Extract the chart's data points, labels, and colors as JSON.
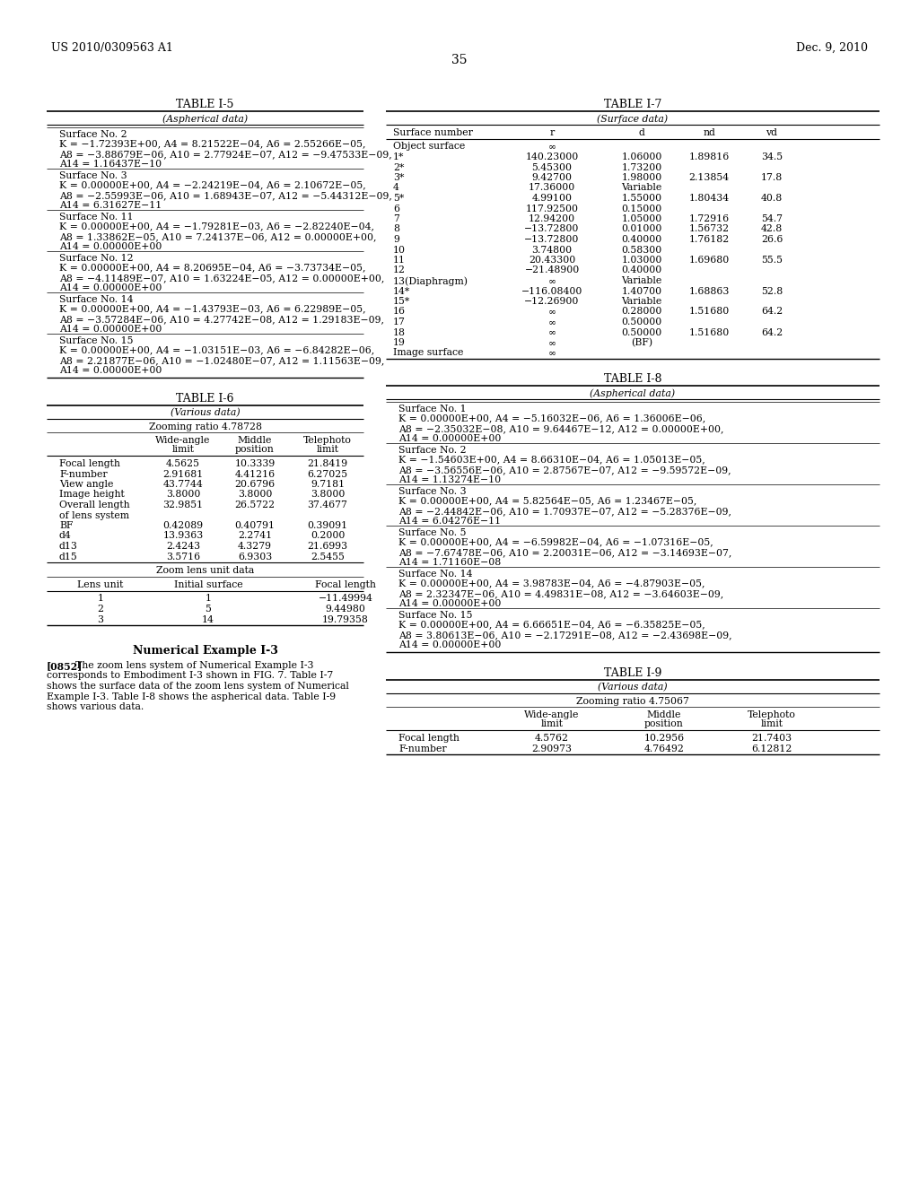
{
  "header_left": "US 2010/0309563 A1",
  "header_right": "Dec. 9, 2010",
  "page_number": "35",
  "table_i5_title": "TABLE I-5",
  "table_i5_subtitle": "(Aspherical data)",
  "table_i5_data": [
    "Surface No. 2",
    "K = −1.72393E+00, A4 = 8.21522E−04, A6 = 2.55266E−05,",
    "A8 = −3.88679E−06, A10 = 2.77924E−07, A12 = −9.47533E−09,",
    "A14 = 1.16437E−10",
    "Surface No. 3",
    "K = 0.00000E+00, A4 = −2.24219E−04, A6 = 2.10672E−05,",
    "A8 = −2.55993E−06, A10 = 1.68943E−07, A12 = −5.44312E−09,",
    "A14 = 6.31627E−11",
    "Surface No. 11",
    "K = 0.00000E+00, A4 = −1.79281E−03, A6 = −2.82240E−04,",
    "A8 = 1.33862E−05, A10 = 7.24137E−06, A12 = 0.00000E+00,",
    "A14 = 0.00000E+00",
    "Surface No. 12",
    "K = 0.00000E+00, A4 = 8.20695E−04, A6 = −3.73734E−05,",
    "A8 = −4.11489E−07, A10 = 1.63224E−05, A12 = 0.00000E+00,",
    "A14 = 0.00000E+00",
    "Surface No. 14",
    "K = 0.00000E+00, A4 = −1.43793E−03, A6 = 6.22989E−05,",
    "A8 = −3.57284E−06, A10 = 4.27742E−08, A12 = 1.29183E−09,",
    "A14 = 0.00000E+00",
    "Surface No. 15",
    "K = 0.00000E+00, A4 = −1.03151E−03, A6 = −6.84282E−06,",
    "A8 = 2.21877E−06, A10 = −1.02480E−07, A12 = 1.11563E−09,",
    "A14 = 0.00000E+00"
  ],
  "table_i6_title": "TABLE I-6",
  "table_i6_subtitle": "(Various data)",
  "table_i6_zoom_ratio": "Zooming ratio 4.78728",
  "table_i6_rows": [
    [
      "Focal length",
      "4.5625",
      "10.3339",
      "21.8419"
    ],
    [
      "F-number",
      "2.91681",
      "4.41216",
      "6.27025"
    ],
    [
      "View angle",
      "43.7744",
      "20.6796",
      "9.7181"
    ],
    [
      "Image height",
      "3.8000",
      "3.8000",
      "3.8000"
    ],
    [
      "Overall length",
      "32.9851",
      "26.5722",
      "37.4677"
    ],
    [
      "of lens system",
      "",
      "",
      ""
    ],
    [
      "BF",
      "0.42089",
      "0.40791",
      "0.39091"
    ],
    [
      "d4",
      "13.9363",
      "2.2741",
      "0.2000"
    ],
    [
      "d13",
      "2.4243",
      "4.3279",
      "21.6993"
    ],
    [
      "d15",
      "3.5716",
      "6.9303",
      "2.5455"
    ]
  ],
  "table_i6_zoom_unit": "Zoom lens unit data",
  "table_i6_unit_headers": [
    "Lens unit",
    "Initial surface",
    "Focal length"
  ],
  "table_i6_unit_rows": [
    [
      "1",
      "1",
      "−11.49994"
    ],
    [
      "2",
      "5",
      "9.44980"
    ],
    [
      "3",
      "14",
      "19.79358"
    ]
  ],
  "table_i7_title": "TABLE I-7",
  "table_i7_subtitle": "(Surface data)",
  "table_i7_headers": [
    "Surface number",
    "r",
    "d",
    "nd",
    "vd"
  ],
  "table_i7_rows": [
    [
      "Object surface",
      "∞",
      "",
      "",
      ""
    ],
    [
      "1*",
      "140.23000",
      "1.06000",
      "1.89816",
      "34.5"
    ],
    [
      "2*",
      "5.45300",
      "1.73200",
      "",
      ""
    ],
    [
      "3*",
      "9.42700",
      "1.98000",
      "2.13854",
      "17.8"
    ],
    [
      "4",
      "17.36000",
      "Variable",
      "",
      ""
    ],
    [
      "5*",
      "4.99100",
      "1.55000",
      "1.80434",
      "40.8"
    ],
    [
      "6",
      "117.92500",
      "0.15000",
      "",
      ""
    ],
    [
      "7",
      "12.94200",
      "1.05000",
      "1.72916",
      "54.7"
    ],
    [
      "8",
      "−13.72800",
      "0.01000",
      "1.56732",
      "42.8"
    ],
    [
      "9",
      "−13.72800",
      "0.40000",
      "1.76182",
      "26.6"
    ],
    [
      "10",
      "3.74800",
      "0.58300",
      "",
      ""
    ],
    [
      "11",
      "20.43300",
      "1.03000",
      "1.69680",
      "55.5"
    ],
    [
      "12",
      "−21.48900",
      "0.40000",
      "",
      ""
    ],
    [
      "13(Diaphragm)",
      "∞",
      "Variable",
      "",
      ""
    ],
    [
      "14*",
      "−116.08400",
      "1.40700",
      "1.68863",
      "52.8"
    ],
    [
      "15*",
      "−12.26900",
      "Variable",
      "",
      ""
    ],
    [
      "16",
      "∞",
      "0.28000",
      "1.51680",
      "64.2"
    ],
    [
      "17",
      "∞",
      "0.50000",
      "",
      ""
    ],
    [
      "18",
      "∞",
      "0.50000",
      "1.51680",
      "64.2"
    ],
    [
      "19",
      "∞",
      "(BF)",
      "",
      ""
    ],
    [
      "Image surface",
      "∞",
      "",
      "",
      ""
    ]
  ],
  "table_i8_title": "TABLE I-8",
  "table_i8_subtitle": "(Aspherical data)",
  "table_i8_data": [
    "Surface No. 1",
    "K = 0.00000E+00, A4 = −5.16032E−06, A6 = 1.36006E−06,",
    "A8 = −2.35032E−08, A10 = 9.64467E−12, A12 = 0.00000E+00,",
    "A14 = 0.00000E+00",
    "Surface No. 2",
    "K = −1.54603E+00, A4 = 8.66310E−04, A6 = 1.05013E−05,",
    "A8 = −3.56556E−06, A10 = 2.87567E−07, A12 = −9.59572E−09,",
    "A14 = 1.13274E−10",
    "Surface No. 3",
    "K = 0.00000E+00, A4 = 5.82564E−05, A6 = 1.23467E−05,",
    "A8 = −2.44842E−06, A10 = 1.70937E−07, A12 = −5.28376E−09,",
    "A14 = 6.04276E−11",
    "Surface No. 5",
    "K = 0.00000E+00, A4 = −6.59982E−04, A6 = −1.07316E−05,",
    "A8 = −7.67478E−06, A10 = 2.20031E−06, A12 = −3.14693E−07,",
    "A14 = 1.71160E−08",
    "Surface No. 14",
    "K = 0.00000E+00, A4 = 3.98783E−04, A6 = −4.87903E−05,",
    "A8 = 2.32347E−06, A10 = 4.49831E−08, A12 = −3.64603E−09,",
    "A14 = 0.00000E+00",
    "Surface No. 15",
    "K = 0.00000E+00, A4 = 6.66651E−04, A6 = −6.35825E−05,",
    "A8 = 3.80613E−06, A10 = −2.17291E−08, A12 = −2.43698E−09,",
    "A14 = 0.00000E+00"
  ],
  "table_i9_title": "TABLE I-9",
  "table_i9_subtitle": "(Various data)",
  "table_i9_zoom_ratio": "Zooming ratio 4.75067",
  "table_i9_rows": [
    [
      "Focal length",
      "4.5762",
      "10.2956",
      "21.7403"
    ],
    [
      "F-number",
      "2.90973",
      "4.76492",
      "6.12812"
    ]
  ],
  "num_example_title": "Numerical Example I-3",
  "num_example_para": "[0852]",
  "num_example_body": "   The zoom lens system of Numerical Example I-3\ncorresponds to Embodiment I-3 shown in FIG. 7. Table I-7\nshows the surface data of the zoom lens system of Numerical\nExample I-3. Table I-8 shows the aspherical data. Table I-9\nshows various data.",
  "bg_color": "#ffffff",
  "text_color": "#000000",
  "line_color": "#000000"
}
